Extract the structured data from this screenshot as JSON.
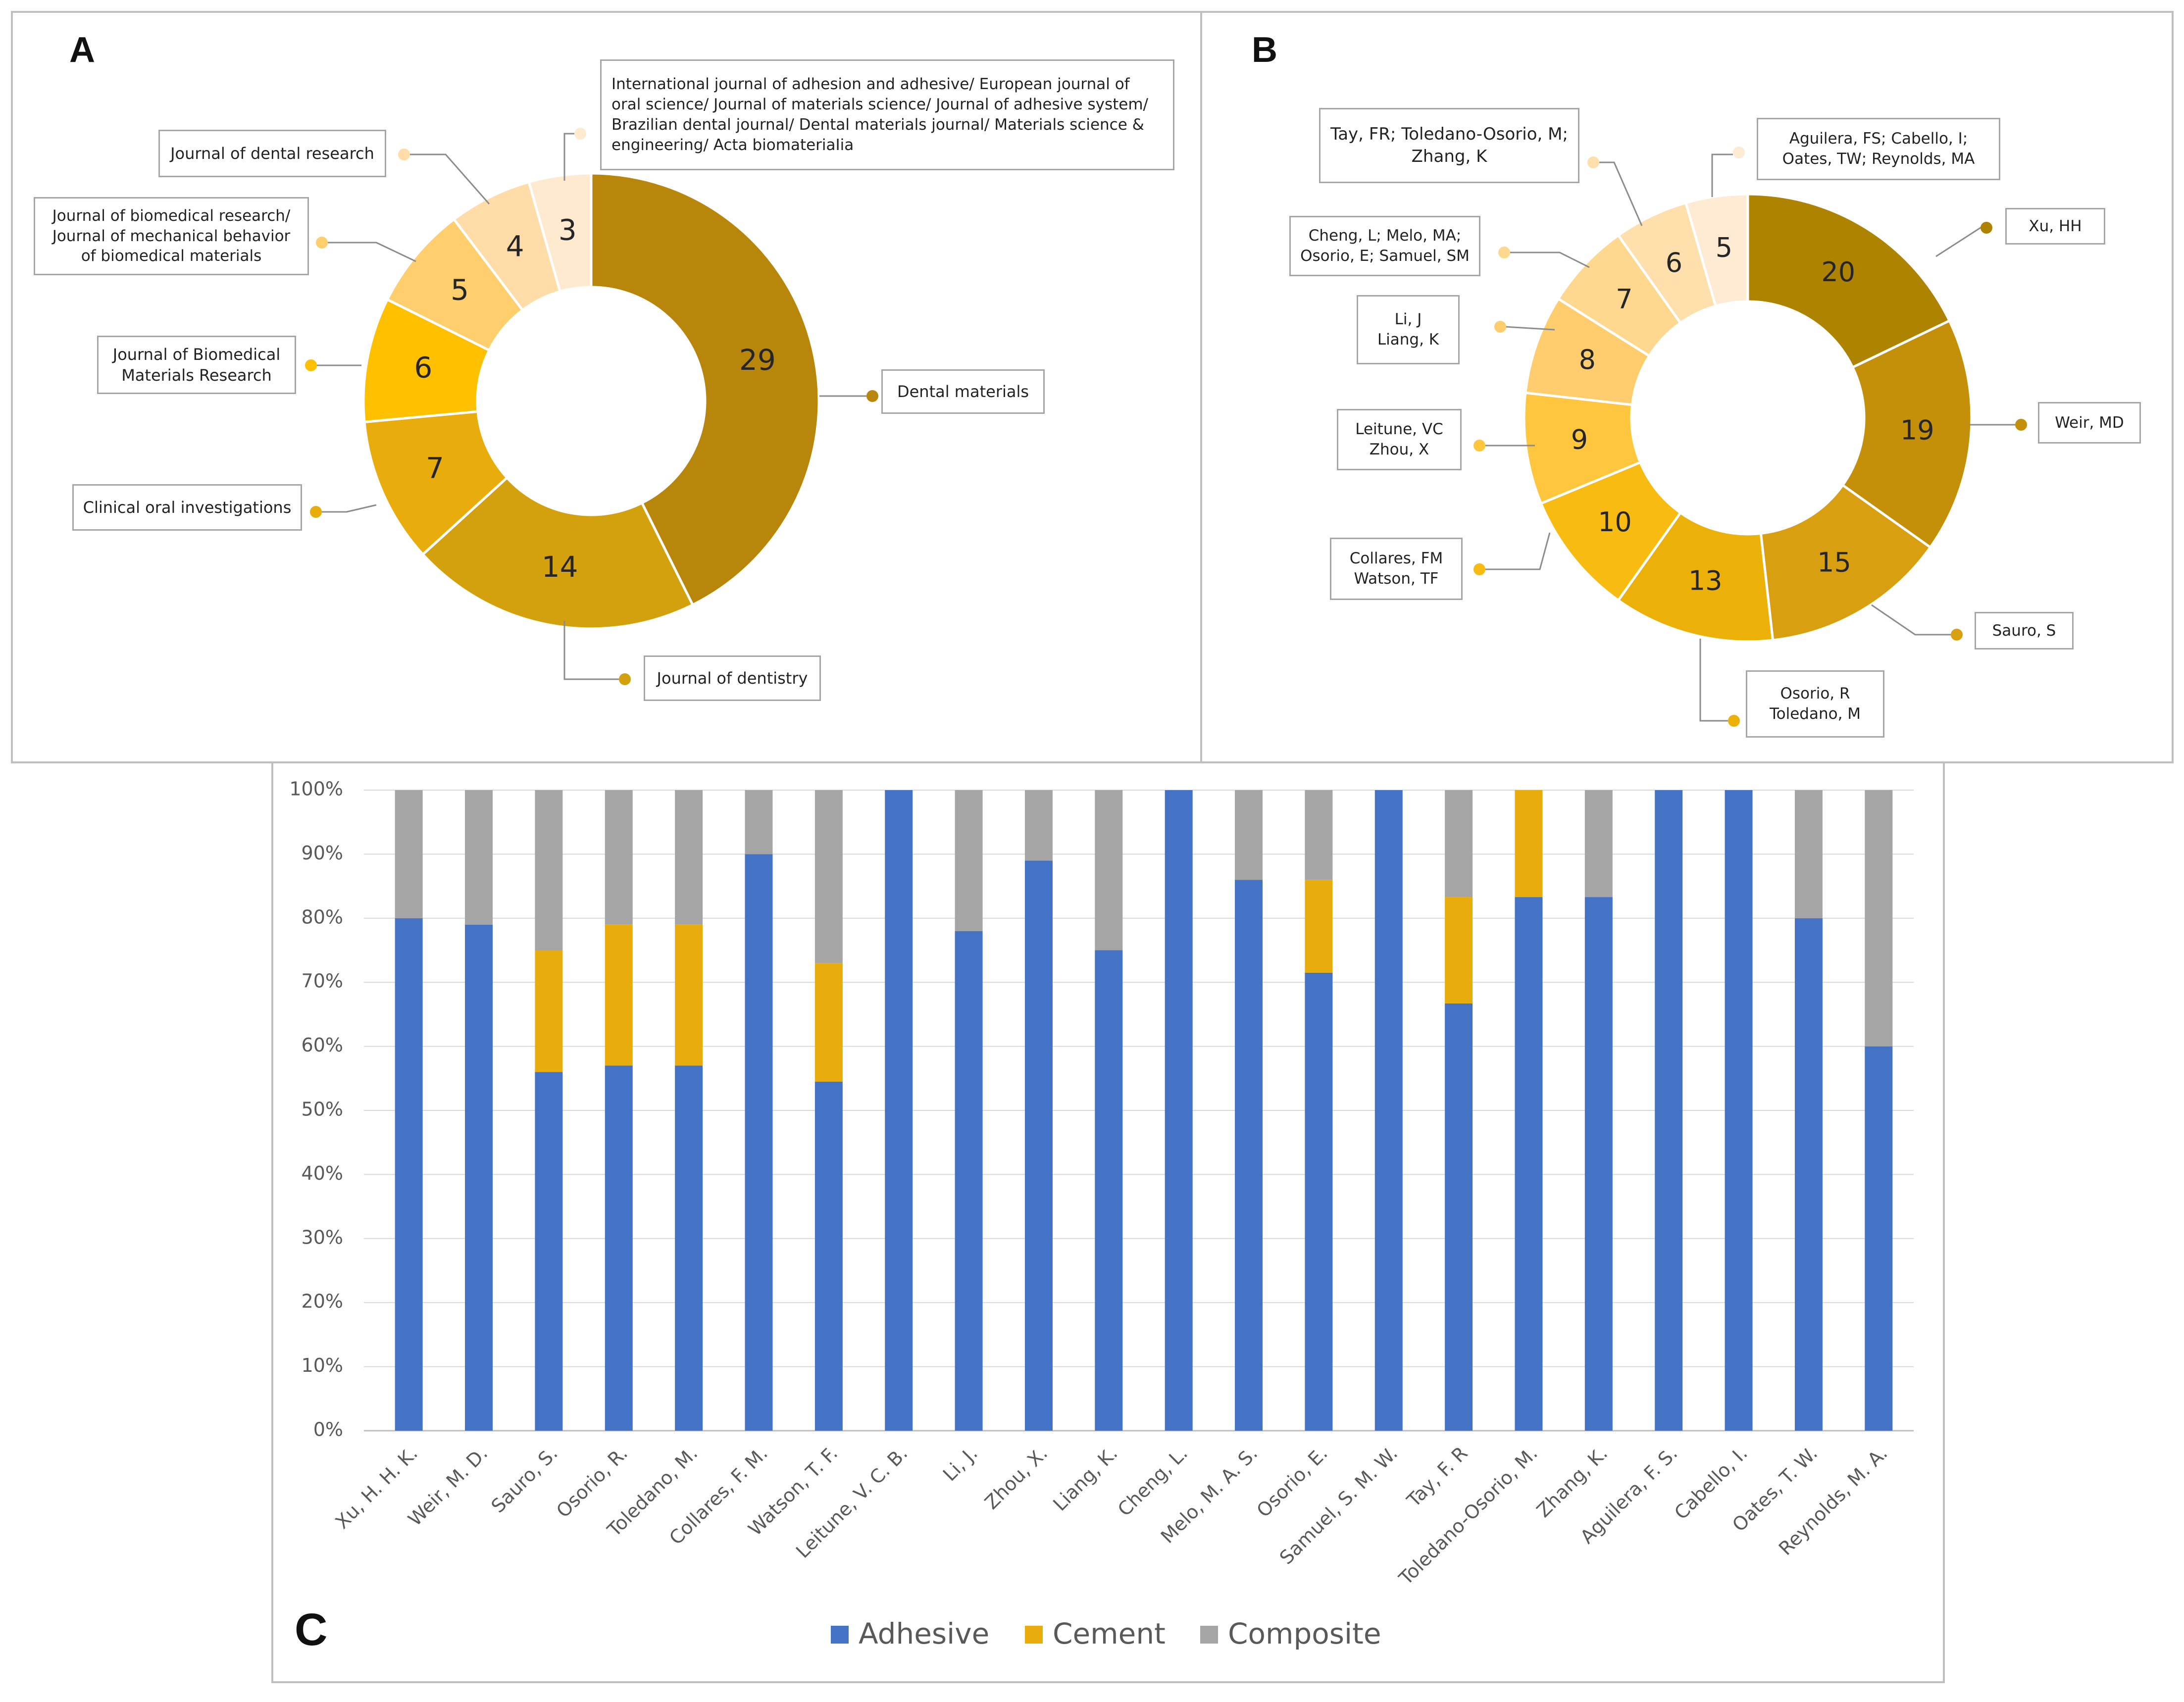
{
  "panels": {
    "a": "A",
    "b": "B",
    "c": "C"
  },
  "chart_data": [
    {
      "type": "pie",
      "title": "A",
      "categories": [
        "Dental materials",
        "Journal of dentistry",
        "Clinical oral investigations",
        "Journal of Biomedical Materials Research",
        "Journal of biomedical research/ Journal of mechanical behavior of biomedical materials",
        "Journal of dental research",
        "International journal of adhesion and adhesive/ European journal of oral science/ Journal of materials science/ Journal of adhesive system/ Brazilian dental journal/ Dental materials journal/ Materials science & engineering/ Acta biomateriaIia"
      ],
      "labels": [
        "Dental materials",
        "Journal of dentistry",
        "Clinical oral investigations",
        "Journal of Biomedical\nMaterials Research",
        "Journal of biomedical research/\nJournal of mechanical behavior\nof biomedical materials",
        "Journal of dental research",
        "International journal of adhesion and adhesive/ European journal of\noral science/ Journal of materials science/ Journal of adhesive system/\nBrazilian dental journal/ Dental materials journal/ Materials science &\nengineering/ Acta biomateriaIia"
      ],
      "values": [
        29,
        14,
        7,
        6,
        5,
        4,
        3
      ],
      "colors": [
        "#b8860b",
        "#d4a10e",
        "#e8ac0c",
        "#ffc000",
        "#ffcf6e",
        "#ffdca8",
        "#ffe9cf"
      ]
    },
    {
      "type": "pie",
      "title": "B",
      "categories": [
        "Xu, HH",
        "Weir, MD",
        "Sauro, S",
        "Osorio, R; Toledano, M",
        "Collares, FM; Watson, TF",
        "Leitune, VC; Zhou, X",
        "Li, J; Liang, K",
        "Cheng, L; Melo, MA; Osorio, E; Samuel, SM",
        "Tay, FR; Toledano-Osorio, M; Zhang, K",
        "Aguilera, FS; Cabello, I; Oates, TW; Reynolds, MA"
      ],
      "labels": [
        "Xu, HH",
        "Weir, MD",
        "Sauro, S",
        "Osorio, R\nToledano, M",
        "Collares, FM\nWatson, TF",
        "Leitune, VC\nZhou, X",
        "Li, J\nLiang, K",
        "Cheng, L;  Melo, MA;\nOsorio, E; Samuel, SM",
        "Tay, FR; Toledano-Osorio, M;\nZhang, K",
        "Aguilera, FS; Cabello, I;\nOates, TW; Reynolds, MA"
      ],
      "values": [
        20,
        19,
        15,
        13,
        10,
        9,
        8,
        7,
        6,
        5
      ],
      "colors": [
        "#ad8300",
        "#c4900a",
        "#d8a010",
        "#ecb109",
        "#f7bb12",
        "#ffc63e",
        "#ffcd6e",
        "#ffd88f",
        "#ffe0ad",
        "#ffebd3"
      ]
    },
    {
      "type": "bar",
      "stacked": true,
      "title": "C",
      "categories": [
        "Xu, H. H. K.",
        "Weir, M. D.",
        "Sauro, S.",
        "Osorio, R.",
        "Toledano, M.",
        "Collares, F. M.",
        "Watson, T. F.",
        "Leitune, V. C. B.",
        "Li, J.",
        "Zhou, X.",
        "Liang, K.",
        "Cheng, L.",
        "Melo, M. A. S.",
        "Osorio, E.",
        "Samuel, S. M. W.",
        "Tay, F. R",
        "Toledano-Osorio, M.",
        "Zhang, K.",
        "Aguilera, F. S.",
        "Cabello, I.",
        "Oates, T. W.",
        "Reynolds, M. A."
      ],
      "series": [
        {
          "name": "Adhesive",
          "color": "#4472c4",
          "values": [
            80,
            79,
            56,
            57,
            57,
            90,
            54.5,
            100,
            78,
            89,
            75,
            100,
            86,
            71.5,
            100,
            66.7,
            83.3,
            83.3,
            100,
            100,
            80,
            60
          ]
        },
        {
          "name": "Cement",
          "color": "#e8ac0c",
          "values": [
            0,
            0,
            19,
            22,
            22,
            0,
            18.5,
            0,
            0,
            0,
            0,
            0,
            0,
            14.5,
            0,
            16.6,
            16.7,
            0,
            0,
            0,
            0,
            0
          ]
        },
        {
          "name": "Composite",
          "color": "#a5a5a5",
          "values": [
            20,
            21,
            25,
            21,
            21,
            10,
            27,
            0,
            22,
            11,
            25,
            0,
            14,
            14,
            0,
            16.7,
            0,
            16.7,
            0,
            0,
            20,
            40
          ]
        }
      ],
      "yticks": [
        "0%",
        "10%",
        "20%",
        "30%",
        "40%",
        "50%",
        "60%",
        "70%",
        "80%",
        "90%",
        "100%"
      ],
      "ylim": [
        0,
        100
      ]
    }
  ]
}
